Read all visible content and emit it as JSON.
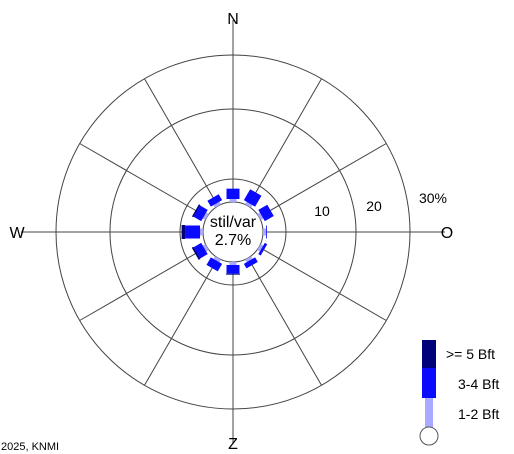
{
  "chart_data": {
    "type": "wind-rose",
    "directions": [
      "N",
      "O",
      "Z",
      "W"
    ],
    "ring_labels": [
      "10",
      "20",
      "30%"
    ],
    "radial_max_percent": 30,
    "calm": {
      "label": "stil/var",
      "value": "2.7%"
    },
    "sector_angles_deg": [
      0,
      30,
      60,
      90,
      120,
      150,
      180,
      210,
      240,
      270,
      300,
      330
    ],
    "series": [
      {
        "name": "1-2 Bft",
        "color": "#a9a9ff",
        "values": [
          1.3,
          1.3,
          1.3,
          1.5,
          1.3,
          1.3,
          1.3,
          1.3,
          1.3,
          1.3,
          1.3,
          1.3
        ]
      },
      {
        "name": "3-4 Bft",
        "color": "#0a0aff",
        "values": [
          4.5,
          5.5,
          4.5,
          0.2,
          1.2,
          2.3,
          3.8,
          3.8,
          3.8,
          6.5,
          3.8,
          3.0
        ]
      },
      {
        "name": ">= 5 Bft",
        "color": "#00007a",
        "values": [
          0,
          0,
          0,
          0,
          0,
          0,
          0.4,
          0,
          0.8,
          1.5,
          0.7,
          0
        ]
      }
    ],
    "legend": [
      ">= 5 Bft",
      "3-4 Bft",
      "1-2 Bft"
    ],
    "credit": "2025, KNMI"
  }
}
